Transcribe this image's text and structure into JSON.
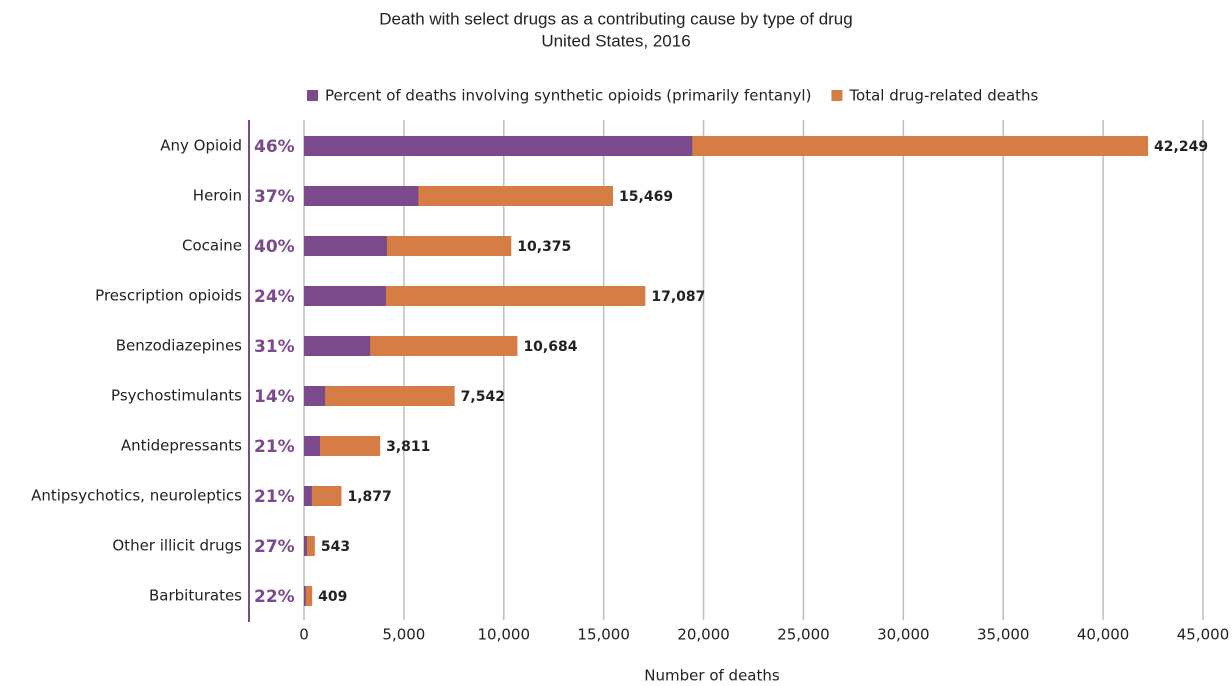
{
  "chart_data": {
    "type": "bar",
    "orientation": "horizontal",
    "title": "Death with select drugs as a contributing cause by type of drug",
    "subtitle": "United States, 2016",
    "xlabel": "Number of deaths",
    "categories": [
      "Any Opioid",
      "Heroin",
      "Cocaine",
      "Prescription opioids",
      "Benzodiazepines",
      "Psychostimulants",
      "Antidepressants",
      "Antipsychotics, neuroleptics",
      "Other illicit drugs",
      "Barbiturates"
    ],
    "series": [
      {
        "name": "Percent of deaths involving synthetic opioids (primarily fentanyl)",
        "color": "#7b4a8c",
        "values": [
          46,
          37,
          40,
          24,
          31,
          14,
          21,
          21,
          27,
          22
        ],
        "value_labels": [
          "46%",
          "37%",
          "40%",
          "24%",
          "31%",
          "14%",
          "21%",
          "21%",
          "27%",
          "22%"
        ]
      },
      {
        "name": "Total drug-related deaths",
        "color": "#d67c45",
        "values": [
          42249,
          15469,
          10375,
          17087,
          10684,
          7542,
          3811,
          1877,
          543,
          409
        ],
        "value_labels": [
          "42,249",
          "15,469",
          "10,375",
          "17,087",
          "10,684",
          "7,542",
          "3,811",
          "1,877",
          "543",
          "409"
        ]
      }
    ],
    "xlim": [
      0,
      45000
    ],
    "xticks": [
      0,
      {
        "value": 5000,
        "label": "5,000"
      },
      {
        "value": 10000,
        "label": "10,000"
      },
      {
        "value": 15000,
        "label": "15,000"
      },
      {
        "value": 20000,
        "label": "20,000"
      },
      {
        "value": 25000,
        "label": "25,000"
      },
      {
        "value": 30000,
        "label": "30,000"
      },
      {
        "value": 35000,
        "label": "35,000"
      },
      {
        "value": 40000,
        "label": "40,000"
      },
      {
        "value": 45000,
        "label": "45,000"
      }
    ],
    "grid": true,
    "legend": "top"
  }
}
